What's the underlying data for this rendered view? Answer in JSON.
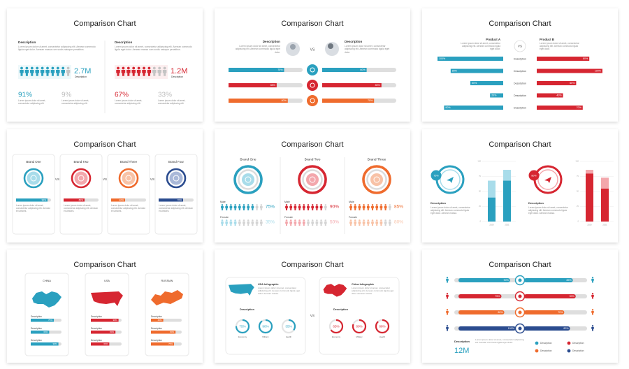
{
  "slides": [
    {
      "title": "Comparison Chart",
      "left": {
        "heading": "Description",
        "text": "Lorem ipsum dolor sit amet, consectetur adipiscing elit. Aenean commodo ligula eget dolor. Aenean massa cum sociis natoque penatibus.",
        "figure": "2.7M",
        "caption": "Description",
        "stats": [
          {
            "value": 91,
            "label": "91%",
            "text": "Lorem ipsum dolor sit amet, consectetur adipiscing elit."
          },
          {
            "value": 9,
            "label": "9%",
            "text": "Lorem ipsum dolor sit amet, consectetur adipiscing elit."
          }
        ]
      },
      "right": {
        "heading": "Description",
        "text": "Lorem ipsum dolor sit amet, consectetur adipiscing elit. Aenean commodo ligula eget dolor. Aenean massa cum sociis natoque penatibus.",
        "figure": "1.2M",
        "caption": "Description",
        "stats": [
          {
            "value": 67,
            "label": "67%",
            "text": "Lorem ipsum dolor sit amet, consectetur adipiscing elit."
          },
          {
            "value": 33,
            "label": "33%",
            "text": "Lorem ipsum dolor sit amet, consectetur adipiscing elit."
          }
        ]
      }
    },
    {
      "title": "Comparison Chart",
      "left": {
        "heading": "Description",
        "text": "Lorem ipsum dolor sit amet, consectetur adipiscing elit. Aenean commodo ligula eget dolor."
      },
      "right": {
        "heading": "Description",
        "text": "Lorem ipsum dolor sit amet, consectetur adipiscing elit. Aenean commodo ligula eget dolor."
      },
      "vs": "VS",
      "rows": [
        {
          "left": {
            "value": 75,
            "label": "75%"
          },
          "right": {
            "value": 60,
            "label": "60%"
          }
        },
        {
          "left": {
            "value": 65,
            "label": "65%"
          },
          "right": {
            "value": 80,
            "label": "80%"
          }
        },
        {
          "left": {
            "value": 80,
            "label": "80%"
          },
          "right": {
            "value": 70,
            "label": "70%"
          }
        }
      ]
    },
    {
      "title": "Comparison Chart",
      "left": {
        "heading": "Product A",
        "text": "Lorem ipsum dolor sit amet, consectetur adipiscing elit. Aenean commodo ligula eget dolor."
      },
      "right": {
        "heading": "Product B",
        "text": "Lorem ipsum dolor sit amet, consectetur adipiscing elit. Aenean commodo ligula eget dolor."
      },
      "vs": "VS",
      "rows": [
        {
          "label": "Description",
          "left": {
            "value": 100,
            "label": "100%"
          },
          "right": {
            "value": 80,
            "label": "80%"
          }
        },
        {
          "label": "Description",
          "left": {
            "value": 80,
            "label": "80%"
          },
          "right": {
            "value": 100,
            "label": "100%"
          }
        },
        {
          "label": "Description",
          "left": {
            "value": 50,
            "label": "50%"
          },
          "right": {
            "value": 60,
            "label": "60%"
          }
        },
        {
          "label": "Description",
          "left": {
            "value": 20,
            "label": "20%"
          },
          "right": {
            "value": 40,
            "label": "40%"
          }
        },
        {
          "label": "Description",
          "left": {
            "value": 90,
            "label": "90%"
          },
          "right": {
            "value": 70,
            "label": "70%"
          }
        }
      ]
    },
    {
      "title": "Comparison Chart",
      "vs": "VS",
      "brands": [
        {
          "name": "Brand One",
          "bar": {
            "value": 90,
            "label": "90%"
          },
          "text": "Lorem ipsum dolor sit amet, consectetur adipiscing elit. Aenean et ultricies."
        },
        {
          "name": "Brand Two",
          "bar": {
            "value": 60,
            "label": "60%"
          },
          "text": "Lorem ipsum dolor sit amet, consectetur adipiscing elit. Aenean et ultricies."
        },
        {
          "name": "Brand Three",
          "bar": {
            "value": 40,
            "label": "40%"
          },
          "text": "Lorem ipsum dolor sit amet, consectetur adipiscing elit. Aenean et ultricies."
        },
        {
          "name": "Brand Four",
          "bar": {
            "value": 70,
            "label": "70%"
          },
          "text": "Lorem ipsum dolor sit amet, consectetur adipiscing elit. Aenean et ultricies."
        }
      ]
    },
    {
      "title": "Comparison Chart",
      "male_label": "Male",
      "female_label": "Female",
      "brands": [
        {
          "name": "Brand One",
          "male": {
            "value": 75,
            "label": "75%"
          },
          "female": {
            "value": 35,
            "label": "35%"
          }
        },
        {
          "name": "Brand Two",
          "male": {
            "value": 90,
            "label": "90%"
          },
          "female": {
            "value": 50,
            "label": "50%"
          }
        },
        {
          "name": "Brand Three",
          "male": {
            "value": 85,
            "label": "85%"
          },
          "female": {
            "value": 80,
            "label": "80%"
          }
        }
      ]
    },
    {
      "title": "Comparison Chart",
      "ylim": [
        0,
        100
      ],
      "yticks": [
        0,
        25,
        50,
        75,
        100
      ],
      "panels": [
        {
          "donut_label": "75%",
          "heading": "Description",
          "text": "Lorem ipsum dolor sit amet, consectetur adipiscing elit. Aenean commodo ligula eget dolor. Aenean massa.",
          "categories": [
            "2020",
            "2021"
          ],
          "bars": [
            {
              "base": 40,
              "top": 28
            },
            {
              "base": 68,
              "top": 18
            }
          ]
        },
        {
          "donut_label": "80%",
          "heading": "Description",
          "text": "Lorem ipsum dolor sit amet, consectetur adipiscing elit. Aenean commodo ligula eget dolor. Aenean massa.",
          "categories": [
            "2020",
            "2021"
          ],
          "bars": [
            {
              "base": 80,
              "top": 6
            },
            {
              "base": 55,
              "top": 18
            }
          ]
        }
      ]
    },
    {
      "title": "Comparison Chart",
      "countries": [
        {
          "name": "CHINA",
          "rows": [
            {
              "label": "Description",
              "bar": {
                "value": 75,
                "label": "75%"
              }
            },
            {
              "label": "Description",
              "bar": {
                "value": 60,
                "label": "60%"
              }
            },
            {
              "label": "Description",
              "bar": {
                "value": 90,
                "label": "90%"
              }
            }
          ]
        },
        {
          "name": "USA",
          "rows": [
            {
              "label": "Description",
              "bar": {
                "value": 90,
                "label": "90%"
              }
            },
            {
              "label": "Description",
              "bar": {
                "value": 80,
                "label": "80%"
              }
            },
            {
              "label": "Description",
              "bar": {
                "value": 60,
                "label": "60%"
              }
            }
          ]
        },
        {
          "name": "RUSSIAN",
          "rows": [
            {
              "label": "Description",
              "bar": {
                "value": 40,
                "label": "40%"
              }
            },
            {
              "label": "Description",
              "bar": {
                "value": 80,
                "label": "80%"
              }
            },
            {
              "label": "Description",
              "bar": {
                "value": 75,
                "label": "75%"
              }
            }
          ]
        }
      ]
    },
    {
      "title": "Comparison Chart",
      "vs": "VS",
      "panels": [
        {
          "heading": "USA Infographic",
          "text": "Lorem ipsum dolor sit amet, consectetur adipiscing elit. Aenean commodo ligula eget dolor. Aenean massa.",
          "subheading": "Description",
          "donuts": [
            {
              "value": 75,
              "label": "75%",
              "caption": "Economy"
            },
            {
              "value": 90,
              "label": "90%",
              "caption": "Military"
            },
            {
              "value": 35,
              "label": "35%",
              "caption": "Health"
            }
          ]
        },
        {
          "heading": "China Infographic",
          "text": "Lorem ipsum dolor sit amet, consectetur adipiscing elit. Aenean commodo ligula eget dolor. Aenean massa.",
          "subheading": "Description",
          "donuts": [
            {
              "value": 65,
              "label": "65%",
              "caption": "Economy"
            },
            {
              "value": 80,
              "label": "80%",
              "caption": "Military"
            },
            {
              "value": 88,
              "label": "88%",
              "caption": "Health"
            }
          ]
        }
      ]
    },
    {
      "title": "Comparison Chart",
      "rows": [
        {
          "left": {
            "value": 90,
            "label": "90%"
          },
          "right": {
            "value": 85,
            "label": "85%"
          }
        },
        {
          "left": {
            "value": 75,
            "label": "75%"
          },
          "right": {
            "value": 90,
            "label": "90%"
          }
        },
        {
          "left": {
            "value": 80,
            "label": "80%"
          },
          "right": {
            "value": 70,
            "label": "70%"
          }
        },
        {
          "left": {
            "value": 100,
            "label": "100%"
          },
          "right": {
            "value": 80,
            "label": "80%"
          }
        }
      ],
      "stat": {
        "heading": "Description",
        "figure": "12M",
        "text": "Lorem ipsum dolor sit amet, consectetur adipiscing elit. Aenean commodo ligula eget dolor."
      },
      "legend": [
        "Description",
        "Description",
        "Description",
        "Description"
      ]
    }
  ]
}
